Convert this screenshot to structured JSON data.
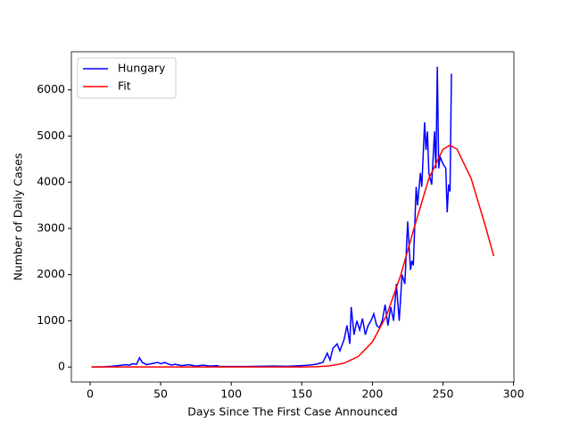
{
  "chart_data": {
    "type": "line",
    "x_label": "Days Since The First Case Announced",
    "y_label": "Number of Daily Cases",
    "xlim": [
      -13.25,
      300.25
    ],
    "xticks": [
      0,
      50,
      100,
      150,
      200,
      250,
      300
    ],
    "ylim": [
      -325,
      6825
    ],
    "yticks": [
      0,
      1000,
      2000,
      3000,
      4000,
      5000,
      6000
    ],
    "legend": "upper left",
    "series": [
      {
        "name": "Hungary",
        "color": "#0000ff",
        "x": [
          1,
          5,
          10,
          15,
          20,
          25,
          28,
          30,
          33,
          35,
          37,
          40,
          45,
          48,
          50,
          53,
          55,
          58,
          60,
          65,
          70,
          75,
          80,
          85,
          90,
          92,
          100,
          110,
          120,
          130,
          140,
          150,
          155,
          160,
          165,
          168,
          170,
          172,
          175,
          177,
          180,
          182,
          184,
          185,
          187,
          189,
          191,
          193,
          195,
          197,
          199,
          201,
          203,
          205,
          207,
          209,
          211,
          213,
          215,
          217,
          219,
          221,
          223,
          225,
          227,
          228,
          229,
          231,
          232,
          234,
          235,
          237,
          238,
          239,
          240,
          242,
          244,
          245,
          246,
          247,
          248,
          250,
          252,
          253,
          254,
          255,
          256
        ],
        "values": [
          0,
          1,
          5,
          15,
          30,
          50,
          40,
          70,
          60,
          200,
          100,
          50,
          80,
          100,
          70,
          100,
          70,
          40,
          60,
          30,
          50,
          20,
          40,
          20,
          30,
          10,
          10,
          10,
          15,
          20,
          15,
          30,
          40,
          60,
          100,
          300,
          150,
          400,
          500,
          350,
          600,
          900,
          500,
          1300,
          700,
          1000,
          800,
          1050,
          700,
          900,
          1000,
          1150,
          900,
          850,
          1000,
          1350,
          900,
          1300,
          1000,
          1800,
          1000,
          2000,
          1800,
          3150,
          2100,
          2300,
          2200,
          3900,
          3500,
          4200,
          3900,
          5300,
          4700,
          5100,
          4200,
          3950,
          5100,
          4300,
          6500,
          4300,
          4550,
          4400,
          4300,
          3350,
          3950,
          3800,
          6350
        ]
      },
      {
        "name": "Fit",
        "color": "#ff0000",
        "x": [
          1,
          50,
          100,
          140,
          150,
          160,
          170,
          180,
          190,
          200,
          210,
          220,
          230,
          240,
          250,
          255,
          260,
          270,
          280,
          286
        ],
        "values": [
          0,
          0,
          0,
          0,
          2,
          7,
          26,
          83,
          227,
          542,
          1114,
          1983,
          3057,
          4081,
          4714,
          4800,
          4714,
          4081,
          3057,
          2400
        ]
      }
    ]
  }
}
